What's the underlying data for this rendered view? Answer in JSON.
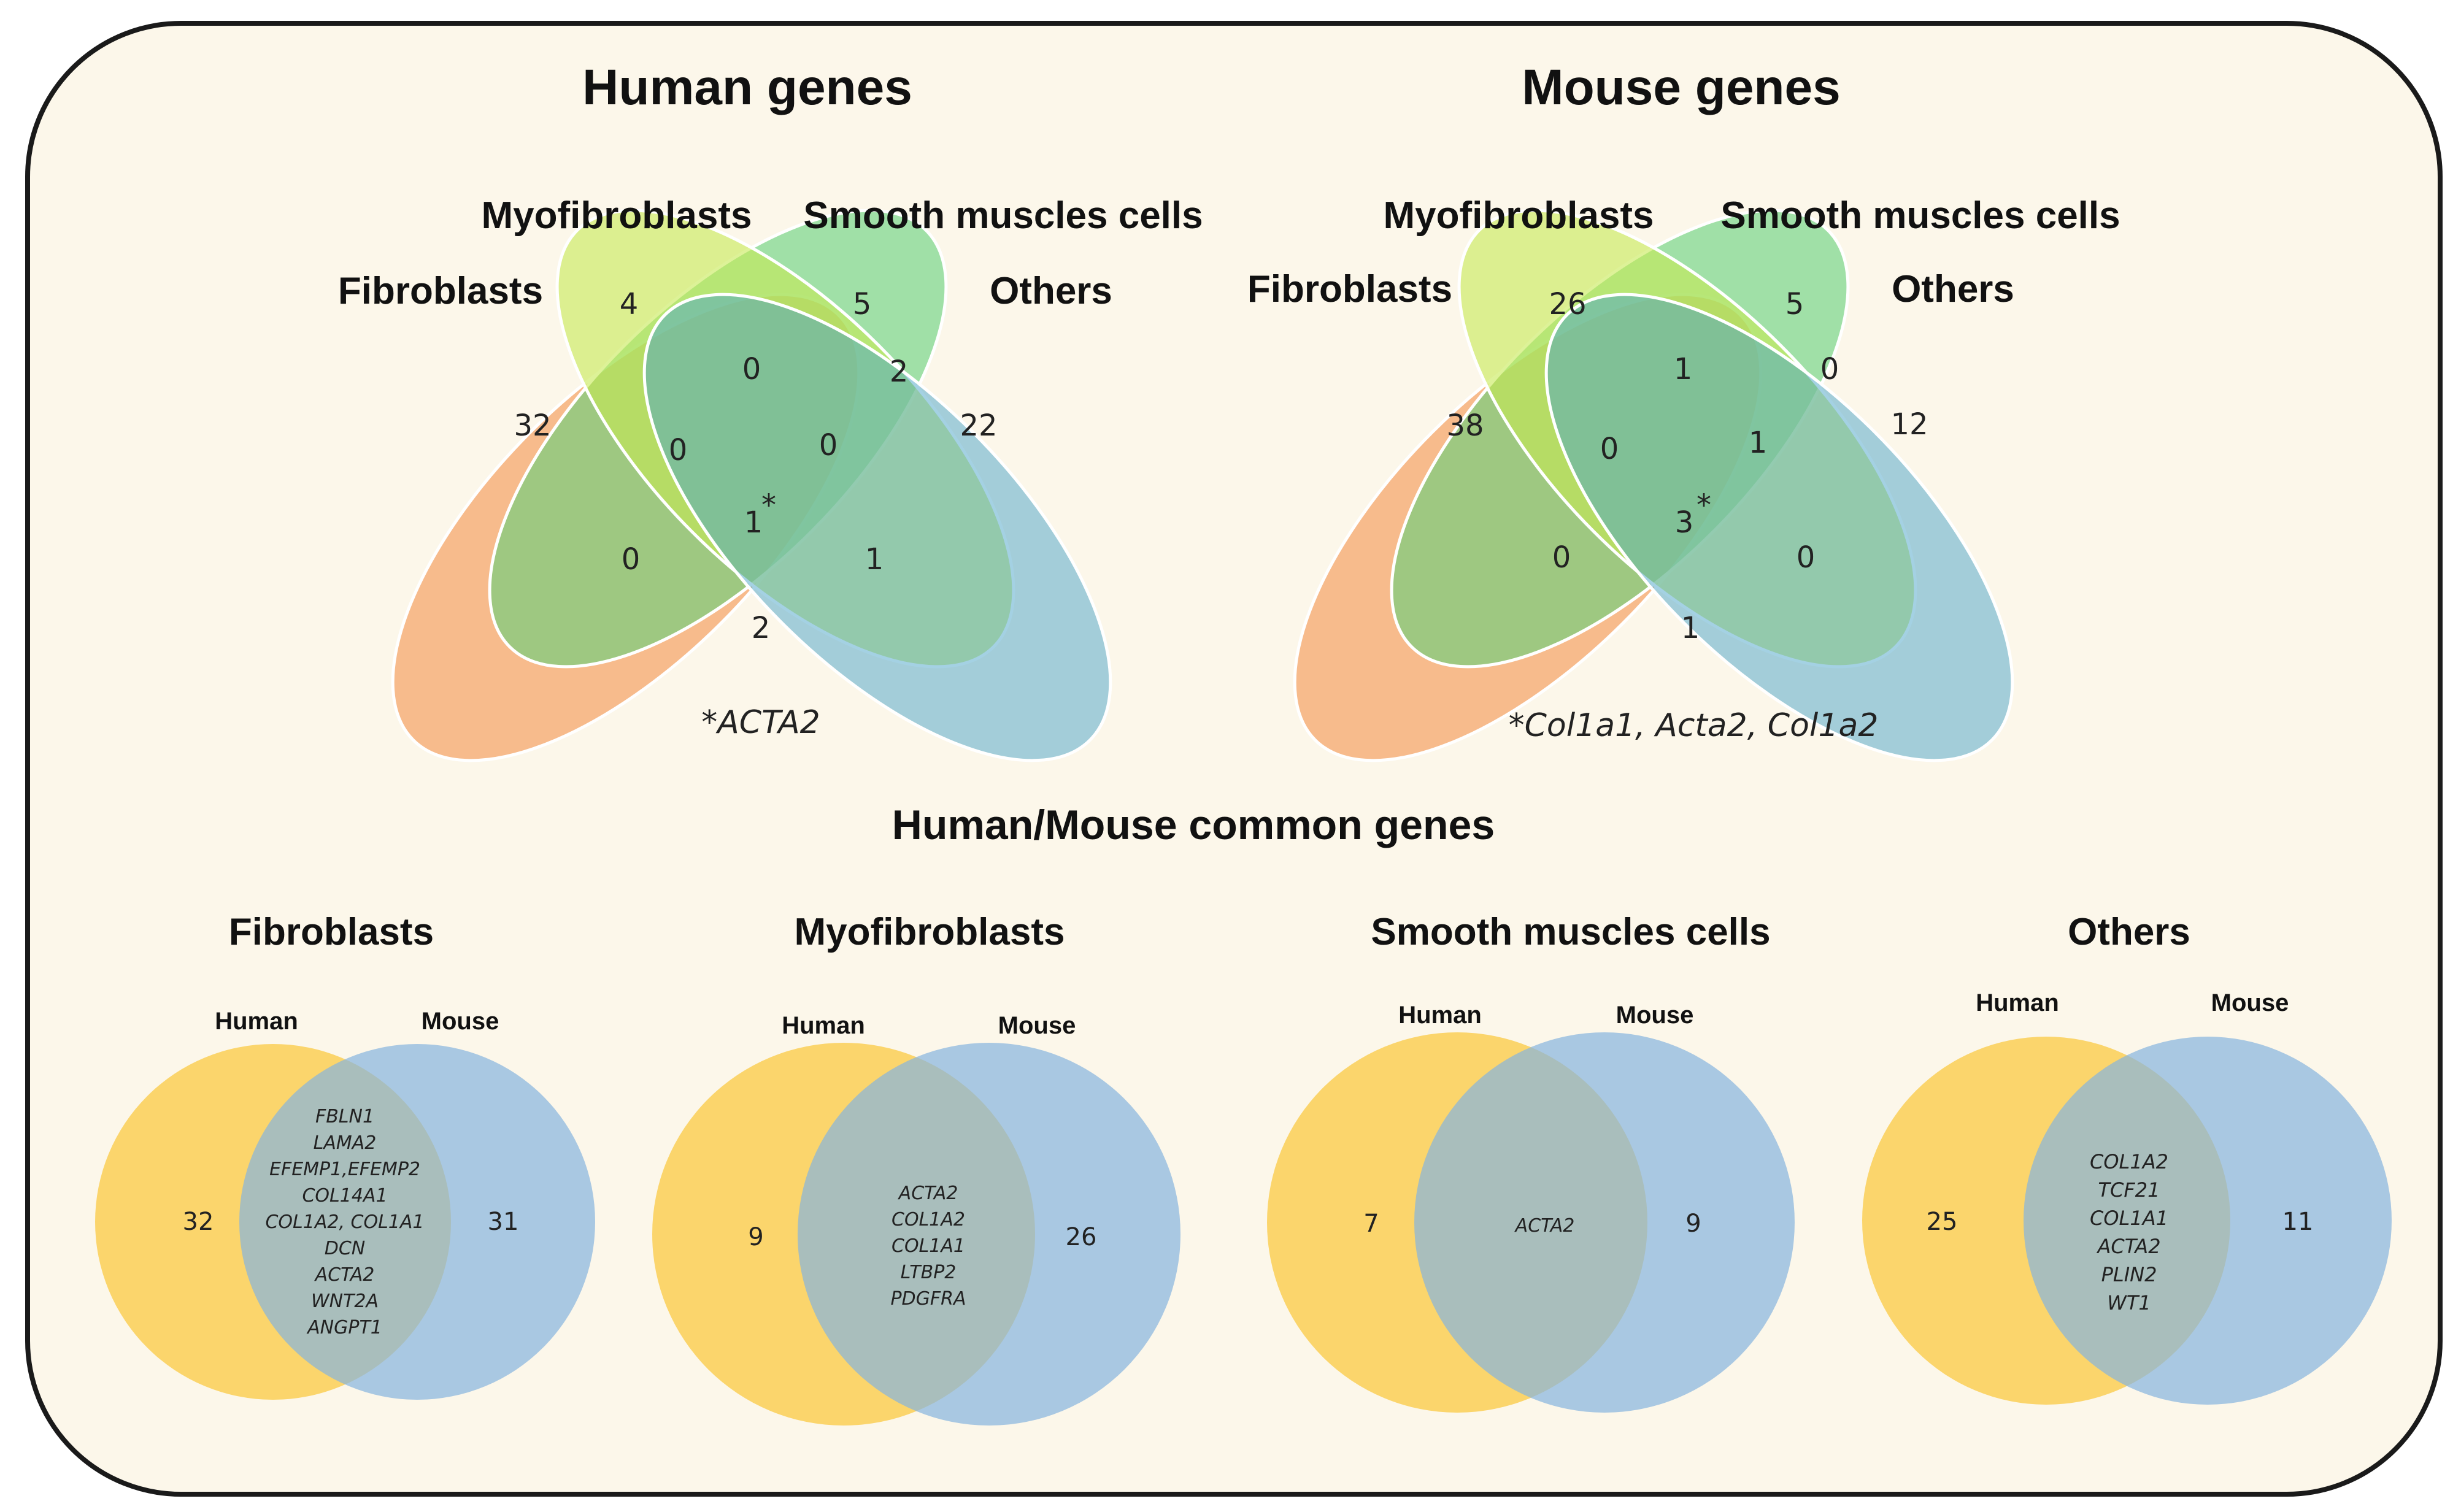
{
  "colors": {
    "panel_bg": "#fcf7ea",
    "panel_border": "#1a1a1a",
    "fibroblasts": "#f4c52e",
    "myofibroblasts": "#1fb24a",
    "smooth": "#9ad163",
    "others": "#1d78c0",
    "ellipse_fibro": "#f5a468",
    "ellipse_myo": "#62d079",
    "ellipse_smooth": "#c6e954",
    "ellipse_others": "#4aa3c7",
    "human_circle": "#fbd05a",
    "mouse_circle": "#86b3de"
  },
  "human_venn": {
    "title": "Human genes",
    "labels": {
      "fibroblasts": "Fibroblasts",
      "myofibroblasts": "Myofibroblasts",
      "smooth": "Smooth muscles cells",
      "others": "Others"
    },
    "counts": {
      "fibro_only": "32",
      "myo_only": "4",
      "smooth_only": "5",
      "others_only": "22",
      "myo_smooth": "0",
      "smooth_others": "2",
      "fibro_myo": "0",
      "myo_smooth_others": "0",
      "all_four": "1",
      "fibro_myo_smooth": "0",
      "myo_others": "1",
      "fibro_others": "2"
    },
    "star": "*",
    "footnote": "*ACTA2"
  },
  "mouse_venn": {
    "title": "Mouse genes",
    "labels": {
      "fibroblasts": "Fibroblasts",
      "myofibroblasts": "Myofibroblasts",
      "smooth": "Smooth muscles cells",
      "others": "Others"
    },
    "counts": {
      "fibro_only": "38",
      "myo_only": "26",
      "smooth_only": "5",
      "others_only": "12",
      "myo_smooth": "1",
      "smooth_others": "0",
      "fibro_myo": "0",
      "myo_smooth_others": "1",
      "all_four": "3",
      "fibro_myo_smooth": "0",
      "myo_others": "0",
      "fibro_others": "1"
    },
    "star": "*",
    "footnote": "*Col1a1, Acta2, Col1a2"
  },
  "common": {
    "title": "Human/Mouse common genes",
    "human_label": "Human",
    "mouse_label": "Mouse",
    "panels": [
      {
        "name": "Fibroblasts",
        "human_only": "32",
        "mouse_only": "31",
        "shared": [
          "FBLN1",
          "LAMA2",
          "EFEMP1,EFEMP2",
          "COL14A1",
          "COL1A2, COL1A1",
          "DCN",
          "ACTA2",
          "WNT2A",
          "ANGPT1"
        ]
      },
      {
        "name": "Myofibroblasts",
        "human_only": "9",
        "mouse_only": "26",
        "shared": [
          "ACTA2",
          "COL1A2",
          "COL1A1",
          "LTBP2",
          "PDGFRA"
        ]
      },
      {
        "name": "Smooth muscles cells",
        "human_only": "7",
        "mouse_only": "9",
        "shared": [
          "ACTA2"
        ]
      },
      {
        "name": "Others",
        "human_only": "25",
        "mouse_only": "11",
        "shared": [
          "COL1A2",
          "TCF21",
          "COL1A1",
          "ACTA2",
          "PLIN2",
          "WT1"
        ]
      }
    ]
  }
}
